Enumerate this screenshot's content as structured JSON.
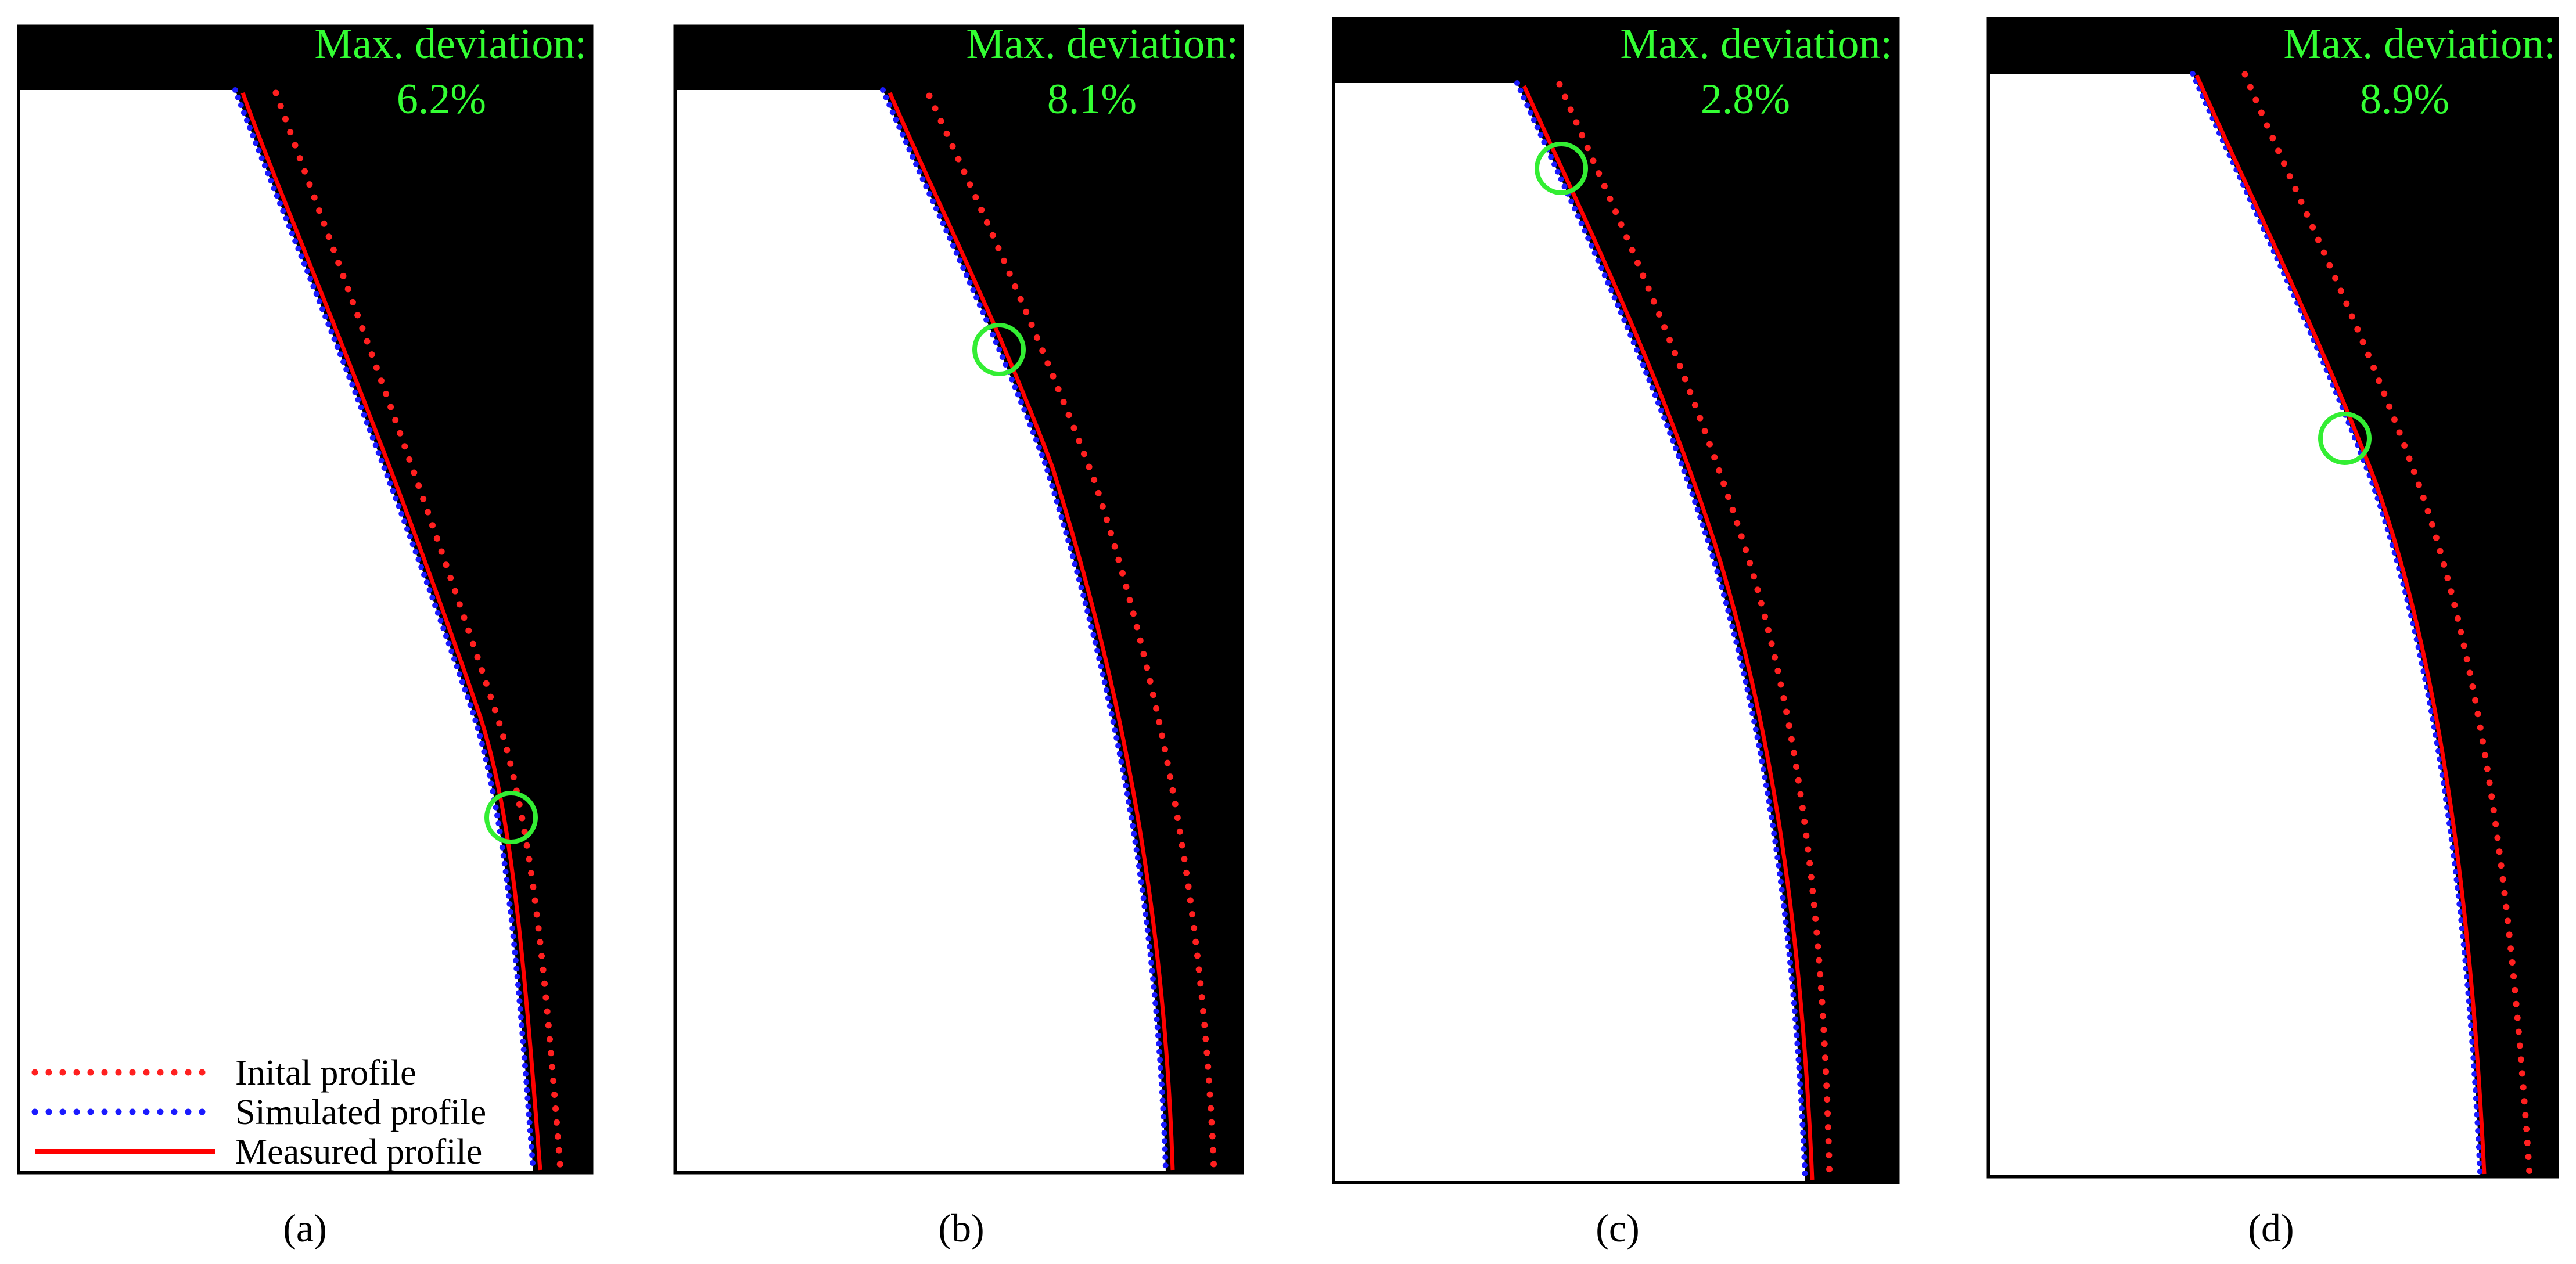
{
  "panels": [
    {
      "label": "(a)",
      "deviation_title": "Max. deviation:",
      "deviation_value": "6.2%"
    },
    {
      "label": "(b)",
      "deviation_title": "Max. deviation:",
      "deviation_value": "8.1%"
    },
    {
      "label": "(c)",
      "deviation_title": "Max. deviation:",
      "deviation_value": "2.8%"
    },
    {
      "label": "(d)",
      "deviation_title": "Max. deviation:",
      "deviation_value": "8.9%"
    }
  ],
  "legend": [
    {
      "label": "Inital profile",
      "style": "dotted",
      "color": "#ff2020"
    },
    {
      "label": "Simulated profile",
      "style": "dotted",
      "color": "#1a1aff"
    },
    {
      "label": "Measured profile",
      "style": "solid",
      "color": "#ff0000"
    }
  ],
  "colors": {
    "background": "#000000",
    "material": "#ffffff",
    "deviation_text": "#33ff33",
    "marker": "#33ee33"
  }
}
